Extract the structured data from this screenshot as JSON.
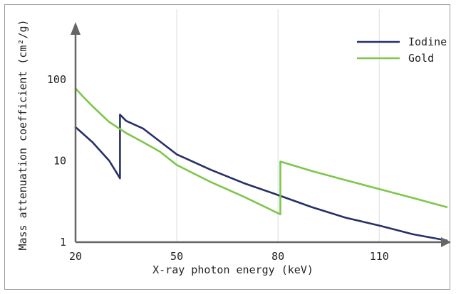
{
  "chart_data": {
    "type": "line",
    "title": "",
    "xlabel": "X-ray photon energy (keV)",
    "ylabel": "Mass attenuation coefficient (cm²/g)",
    "y_scale": "log",
    "xlim": [
      20,
      130
    ],
    "ylim": [
      1,
      200
    ],
    "x_ticks": [
      20,
      50,
      80,
      110
    ],
    "y_ticks": [
      1,
      10,
      100
    ],
    "x_tick_labels": [
      "20",
      "50",
      "80",
      "110"
    ],
    "y_tick_labels": [
      "1",
      "10",
      "100"
    ],
    "grid": "vertical",
    "legend_position": "top-right",
    "series": [
      {
        "name": "Iodine",
        "color": "#253065",
        "x": [
          20,
          25,
          30,
          33.17,
          33.17,
          35,
          40,
          50,
          60,
          70,
          80,
          90,
          100,
          110,
          120,
          130
        ],
        "y": [
          26,
          17,
          10,
          6.1,
          37,
          31,
          25,
          12.0,
          7.8,
          5.3,
          3.8,
          2.7,
          2.0,
          1.6,
          1.25,
          1.05
        ]
      },
      {
        "name": "Gold",
        "color": "#7dc64a",
        "x": [
          20,
          22,
          25,
          30,
          35,
          40,
          45,
          50,
          60,
          70,
          80.7,
          80.7,
          90,
          100,
          110,
          120,
          130
        ],
        "y": [
          78,
          63,
          47,
          30,
          22,
          17,
          13,
          8.9,
          5.5,
          3.6,
          2.2,
          9.8,
          7.5,
          5.8,
          4.5,
          3.5,
          2.7
        ]
      }
    ]
  }
}
